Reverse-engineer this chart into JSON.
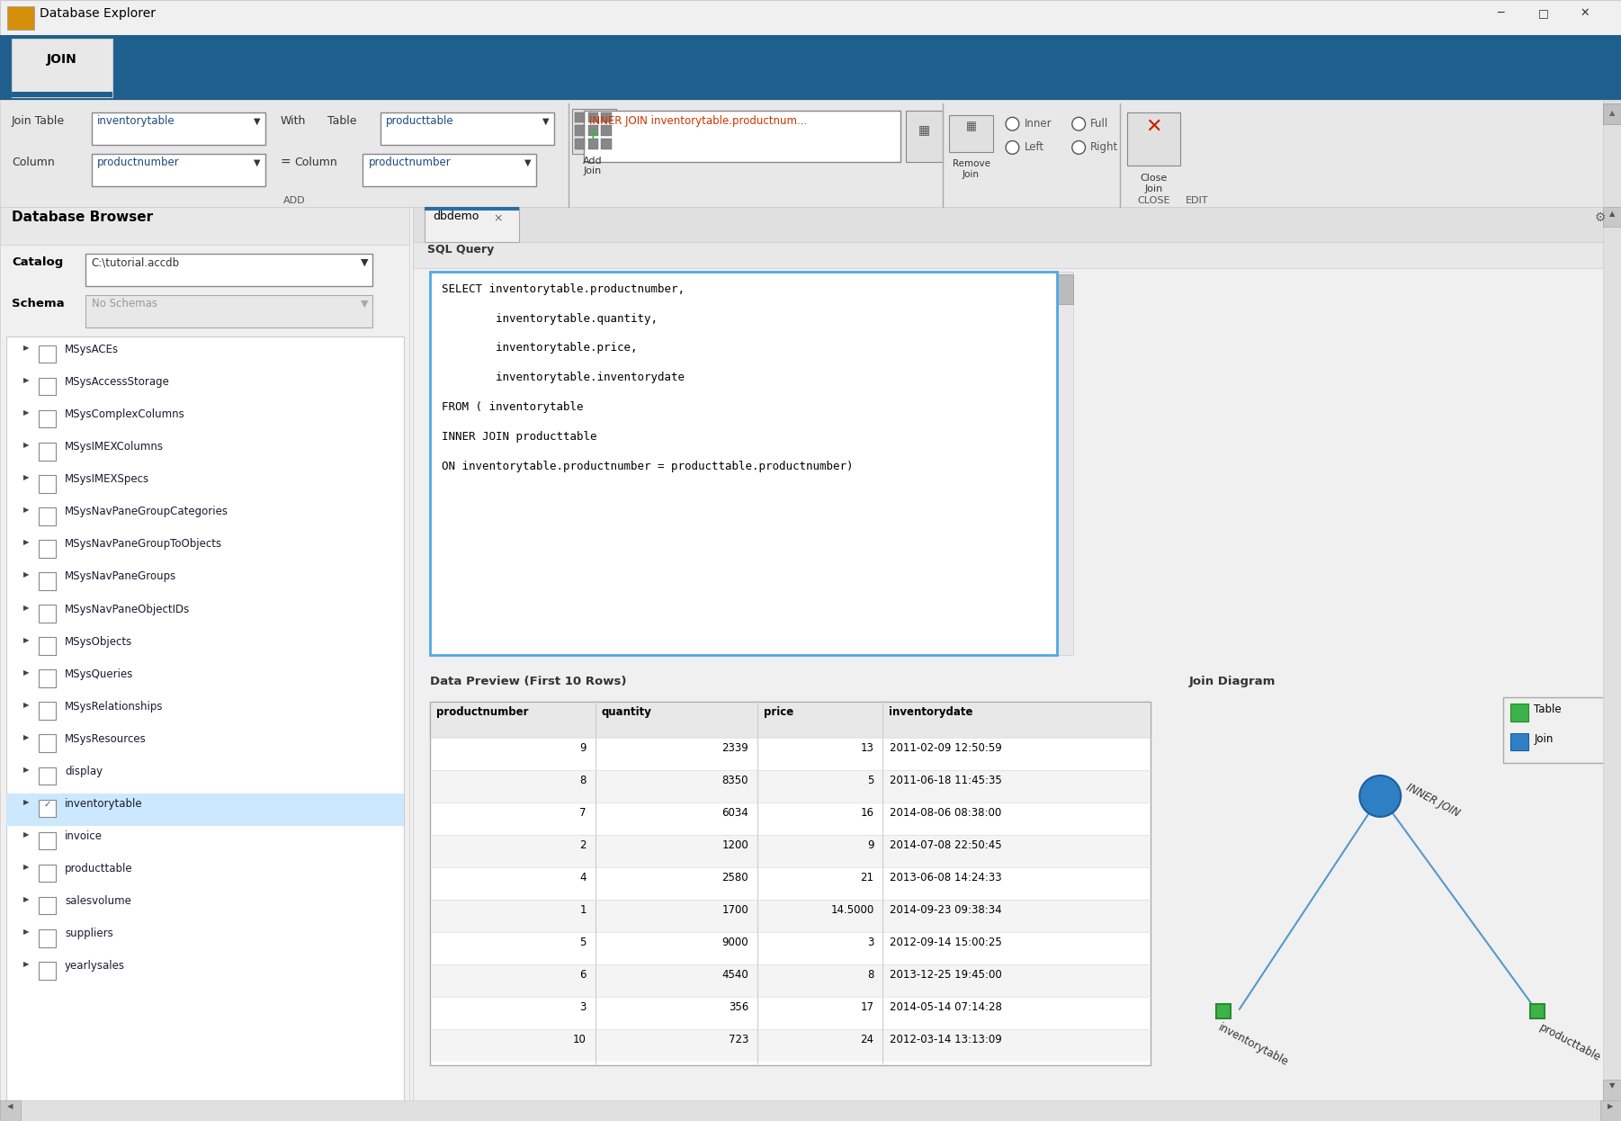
{
  "title_bar": "Database Explorer",
  "join_table_value": "inventorytable",
  "with_table_value": "producttable",
  "column_left_value": "productnumber",
  "column_right_value": "productnumber",
  "db_browser_title": "Database Browser",
  "catalog_label": "Catalog",
  "catalog_value": "C:\\tutorial.accdb",
  "schema_label": "Schema",
  "schema_value": "No Schemas",
  "db_items": [
    "MSysACEs",
    "MSysAccessStorage",
    "MSysComplexColumns",
    "MSysIMEXColumns",
    "MSysIMEXSpecs",
    "MSysNavPaneGroupCategories",
    "MSysNavPaneGroupToObjects",
    "MSysNavPaneGroups",
    "MSysNavPaneObjectIDs",
    "MSysObjects",
    "MSysQueries",
    "MSysRelationships",
    "MSysResources",
    "display",
    "inventorytable",
    "invoice",
    "producttable",
    "salesvolume",
    "suppliers",
    "yearlysales"
  ],
  "selected_item": "inventorytable",
  "checked_item": "inventorytable",
  "tab_name": "dbdemo",
  "sql_query_label": "SQL Query",
  "sql_lines": [
    "SELECT inventorytable.productnumber,",
    "        inventorytable.quantity,",
    "        inventorytable.price,",
    "        inventorytable.inventorydate",
    "FROM ( inventorytable",
    "INNER JOIN producttable",
    "ON inventorytable.productnumber = producttable.productnumber)"
  ],
  "data_preview_label": "Data Preview (First 10 Rows)",
  "table_headers": [
    "productnumber",
    "quantity",
    "price",
    "inventorydate"
  ],
  "table_data": [
    [
      "9",
      "2339",
      "13",
      "2011-02-09 12:50:59"
    ],
    [
      "8",
      "8350",
      "5",
      "2011-06-18 11:45:35"
    ],
    [
      "7",
      "6034",
      "16",
      "2014-08-06 08:38:00"
    ],
    [
      "2",
      "1200",
      "9",
      "2014-07-08 22:50:45"
    ],
    [
      "4",
      "2580",
      "21",
      "2013-06-08 14:24:33"
    ],
    [
      "1",
      "1700",
      "14.5000",
      "2014-09-23 09:38:34"
    ],
    [
      "5",
      "9000",
      "3",
      "2012-09-14 15:00:25"
    ],
    [
      "6",
      "4540",
      "8",
      "2013-12-25 19:45:00"
    ],
    [
      "3",
      "356",
      "17",
      "2014-05-14 07:14:28"
    ],
    [
      "10",
      "723",
      "24",
      "2012-03-14 13:13:09"
    ]
  ],
  "join_diagram_label": "Join Diagram",
  "legend_table_color": "#3cb34a",
  "legend_join_color": "#2e7fc4",
  "bg_color": "#f0f0f0",
  "toolbar_blue": "#1e5f8e",
  "white": "#ffffff",
  "light_gray": "#e8e8e8",
  "border_gray": "#aaaaaa",
  "text_dark": "#1a1a2e",
  "highlight_blue_bg": "#cce8ff",
  "sql_border_blue": "#4fa8e8"
}
